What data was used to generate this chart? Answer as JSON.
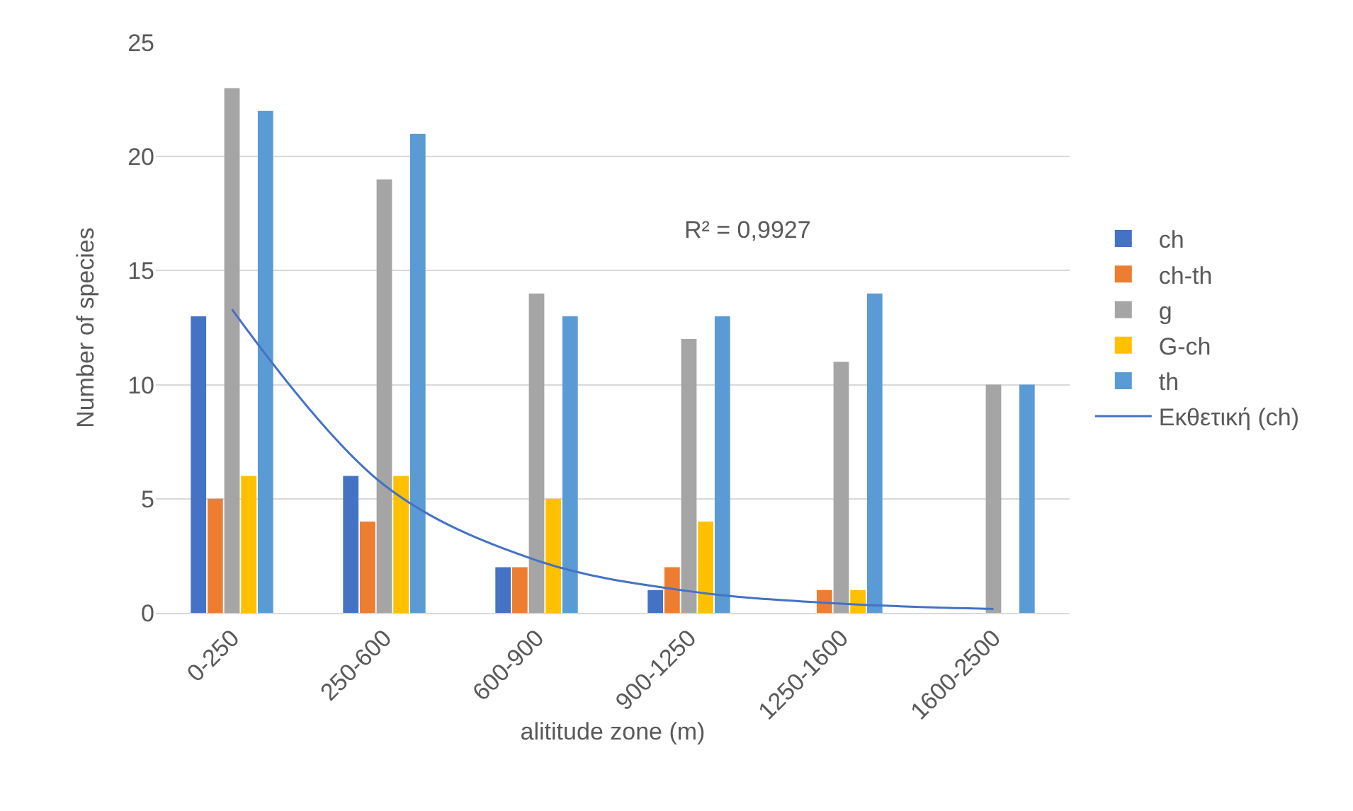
{
  "chart_data": {
    "type": "bar",
    "xlabel": "alititude zone (m)",
    "ylabel": "Number of species",
    "categories": [
      "0-250",
      "250-600",
      "600-900",
      "900-1250",
      "1250-1600",
      "1600-2500"
    ],
    "series": [
      {
        "name": "ch",
        "color": "#4472c4",
        "values": [
          13,
          6,
          2,
          1,
          0,
          0
        ]
      },
      {
        "name": "ch-th",
        "color": "#ed7d31",
        "values": [
          5,
          4,
          2,
          2,
          1,
          0
        ]
      },
      {
        "name": "g",
        "color": "#a5a5a5",
        "values": [
          23,
          19,
          14,
          12,
          11,
          10
        ]
      },
      {
        "name": "G-ch",
        "color": "#ffc000",
        "values": [
          6,
          6,
          5,
          4,
          1,
          0
        ]
      },
      {
        "name": "th",
        "color": "#5b9bd5",
        "values": [
          22,
          21,
          13,
          13,
          14,
          10
        ]
      },
      {
        "name": "Εκθετική (ch)",
        "type": "line",
        "color": "#4472c4",
        "values": [
          13.3,
          5.6,
          2.3,
          0.95,
          0.4,
          0.17
        ]
      }
    ],
    "annotations": [
      "R² = 0,9927"
    ],
    "ylim": [
      0,
      25
    ],
    "yticks": [
      0,
      5,
      10,
      15,
      20,
      25
    ],
    "grid": "y",
    "legend": "right"
  }
}
